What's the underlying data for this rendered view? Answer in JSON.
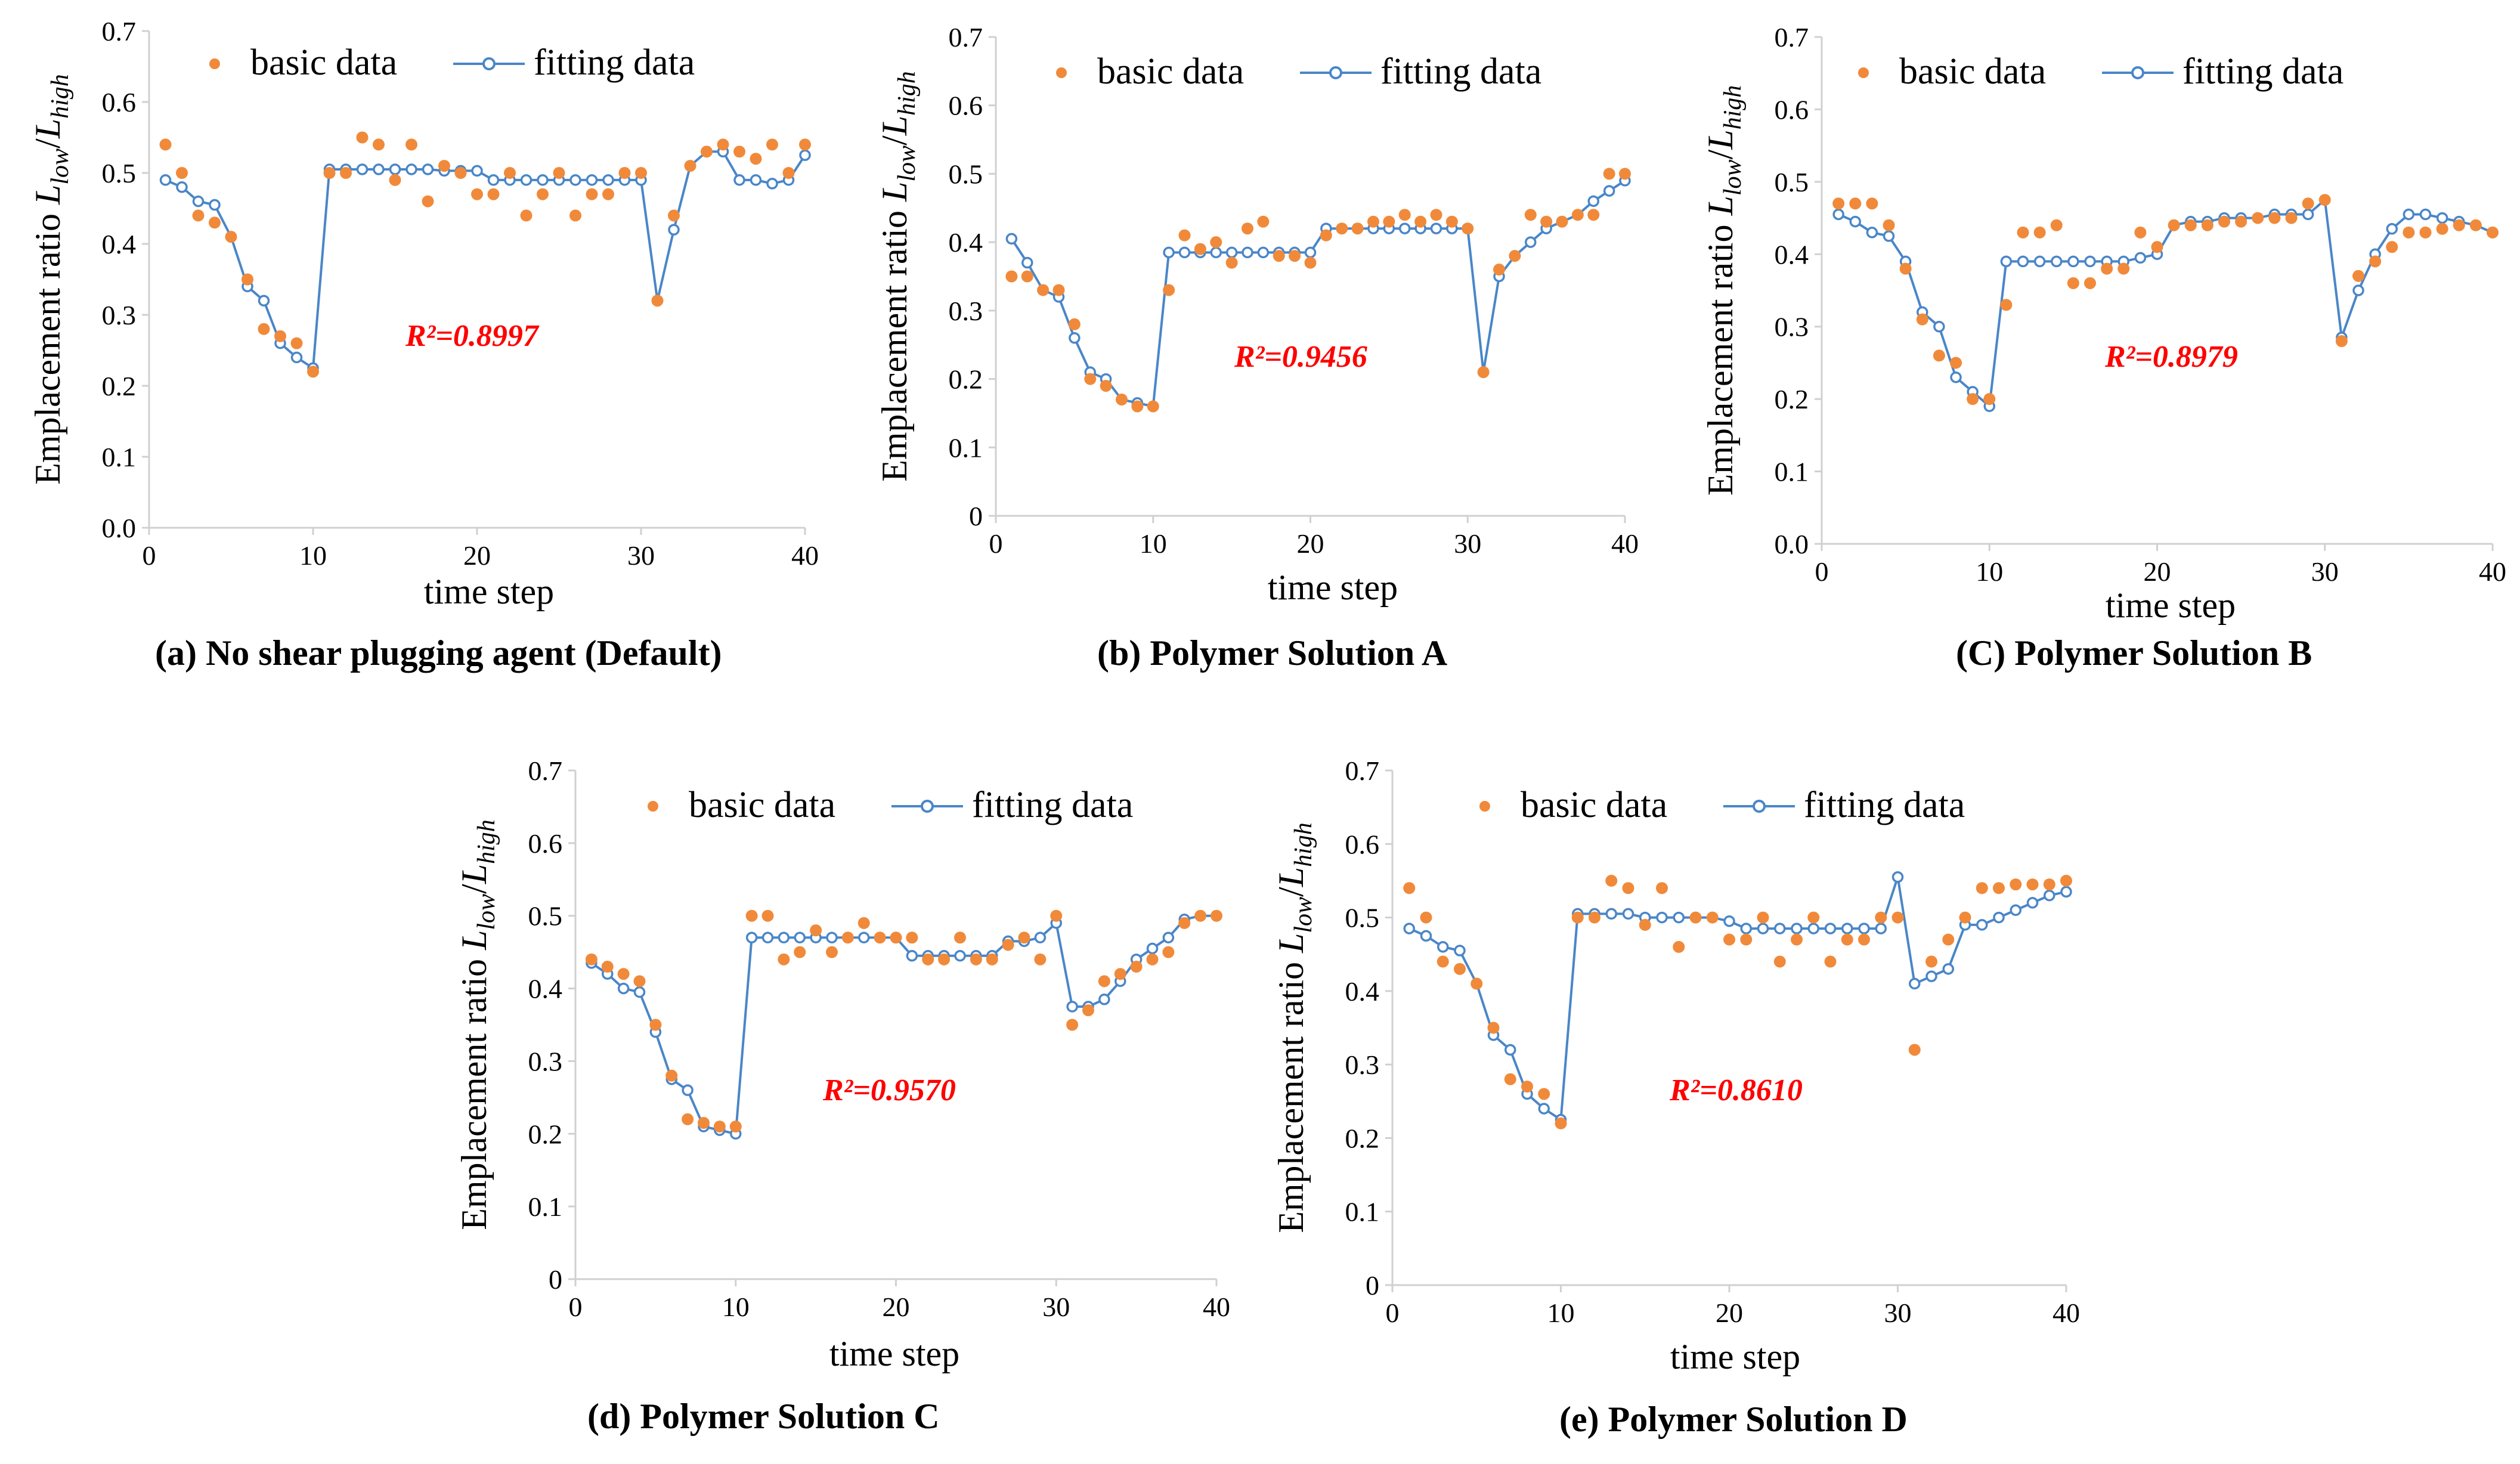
{
  "colors": {
    "basic": "#f08a3a",
    "fitting": "#4a86c8",
    "r2": "#ff0000",
    "axis": "#d0d0d0"
  },
  "chart_data": [
    {
      "type": "scatter+line",
      "caption": "(a) No shear plugging agent (Default)",
      "xlabel": "time step",
      "ylabel": "Emplacement ratio L_low/L_high",
      "ylabel_main": "Emplacement ratio ",
      "ylabel_sym1": "L",
      "ylabel_sub1": "low",
      "ylabel_slash": "/",
      "ylabel_sym2": "L",
      "ylabel_sub2": "high",
      "xlim": [
        0,
        40
      ],
      "ylim": [
        0,
        0.7
      ],
      "xticks": [
        "0",
        "10",
        "20",
        "30",
        "40"
      ],
      "yticks": [
        "0.0",
        "0.1",
        "0.2",
        "0.3",
        "0.4",
        "0.5",
        "0.6",
        "0.7"
      ],
      "legend": [
        "basic data",
        "fitting data"
      ],
      "r2_label": "R²=0.8997",
      "series": [
        {
          "name": "basic data",
          "x": [
            1,
            2,
            3,
            4,
            5,
            6,
            7,
            8,
            9,
            10,
            11,
            12,
            13,
            14,
            15,
            16,
            17,
            18,
            19,
            20,
            21,
            22,
            23,
            24,
            25,
            26,
            27,
            28,
            29,
            30,
            31,
            32,
            33,
            34,
            35,
            36,
            37,
            38,
            39,
            40
          ],
          "values": [
            0.54,
            0.5,
            0.44,
            0.43,
            0.41,
            0.35,
            0.28,
            0.27,
            0.26,
            0.22,
            0.5,
            0.5,
            0.55,
            0.54,
            0.49,
            0.54,
            0.46,
            0.51,
            0.5,
            0.47,
            0.47,
            0.5,
            0.44,
            0.47,
            0.5,
            0.44,
            0.47,
            0.47,
            0.5,
            0.5,
            0.32,
            0.44,
            0.51,
            0.53,
            0.54,
            0.53,
            0.52,
            0.54,
            0.5,
            0.54
          ]
        },
        {
          "name": "fitting data",
          "x": [
            1,
            2,
            3,
            4,
            5,
            6,
            7,
            8,
            9,
            10,
            11,
            12,
            13,
            14,
            15,
            16,
            17,
            18,
            19,
            20,
            21,
            22,
            23,
            24,
            25,
            26,
            27,
            28,
            29,
            30,
            31,
            32,
            33,
            34,
            35,
            36,
            37,
            38,
            39,
            40
          ],
          "values": [
            0.49,
            0.48,
            0.46,
            0.455,
            0.41,
            0.34,
            0.32,
            0.26,
            0.24,
            0.225,
            0.505,
            0.505,
            0.505,
            0.505,
            0.505,
            0.505,
            0.505,
            0.503,
            0.503,
            0.503,
            0.49,
            0.49,
            0.49,
            0.49,
            0.49,
            0.49,
            0.49,
            0.49,
            0.49,
            0.49,
            0.32,
            0.42,
            0.51,
            0.53,
            0.53,
            0.49,
            0.49,
            0.485,
            0.49,
            0.525
          ]
        }
      ]
    },
    {
      "type": "scatter+line",
      "caption": "(b) Polymer Solution A",
      "xlabel": "time step",
      "ylabel": "Emplacement ratio L_low/L_high",
      "ylabel_main": "Emplacement ratio ",
      "ylabel_sym1": "L",
      "ylabel_sub1": "low",
      "ylabel_slash": "/",
      "ylabel_sym2": "L",
      "ylabel_sub2": "high",
      "xlim": [
        0,
        40
      ],
      "ylim": [
        0,
        0.7
      ],
      "xticks": [
        "0",
        "10",
        "20",
        "30",
        "40"
      ],
      "yticks": [
        "0",
        "0.1",
        "0.2",
        "0.3",
        "0.4",
        "0.5",
        "0.6",
        "0.7"
      ],
      "legend": [
        "basic data",
        "fitting data"
      ],
      "r2_label": "R²=0.9456",
      "series": [
        {
          "name": "basic data",
          "x": [
            1,
            2,
            3,
            4,
            5,
            6,
            7,
            8,
            9,
            10,
            11,
            12,
            13,
            14,
            15,
            16,
            17,
            18,
            19,
            20,
            21,
            22,
            23,
            24,
            25,
            26,
            27,
            28,
            29,
            30,
            31,
            32,
            33,
            34,
            35,
            36,
            37,
            38,
            39,
            40
          ],
          "values": [
            0.35,
            0.35,
            0.33,
            0.33,
            0.28,
            0.2,
            0.19,
            0.17,
            0.16,
            0.16,
            0.33,
            0.41,
            0.39,
            0.4,
            0.37,
            0.42,
            0.43,
            0.38,
            0.38,
            0.37,
            0.41,
            0.42,
            0.42,
            0.43,
            0.43,
            0.44,
            0.43,
            0.44,
            0.43,
            0.42,
            0.21,
            0.36,
            0.38,
            0.44,
            0.43,
            0.43,
            0.44,
            0.44,
            0.5,
            0.5
          ]
        },
        {
          "name": "fitting data",
          "x": [
            1,
            2,
            3,
            4,
            5,
            6,
            7,
            8,
            9,
            10,
            11,
            12,
            13,
            14,
            15,
            16,
            17,
            18,
            19,
            20,
            21,
            22,
            23,
            24,
            25,
            26,
            27,
            28,
            29,
            30,
            31,
            32,
            33,
            34,
            35,
            36,
            37,
            38,
            39,
            40
          ],
          "values": [
            0.405,
            0.37,
            0.33,
            0.32,
            0.26,
            0.21,
            0.2,
            0.17,
            0.165,
            0.16,
            0.385,
            0.385,
            0.385,
            0.385,
            0.385,
            0.385,
            0.385,
            0.385,
            0.385,
            0.385,
            0.42,
            0.42,
            0.42,
            0.42,
            0.42,
            0.42,
            0.42,
            0.42,
            0.42,
            0.42,
            0.21,
            0.35,
            0.38,
            0.4,
            0.42,
            0.43,
            0.44,
            0.46,
            0.475,
            0.49
          ]
        }
      ]
    },
    {
      "type": "scatter+line",
      "caption": "(C) Polymer Solution B",
      "xlabel": "time step",
      "ylabel": "Emplacement ratio L_low/L_high",
      "ylabel_main": "Emplacement ratio ",
      "ylabel_sym1": "L",
      "ylabel_sub1": "low",
      "ylabel_slash": "/",
      "ylabel_sym2": "L",
      "ylabel_sub2": "high",
      "xlim": [
        0,
        40
      ],
      "ylim": [
        0,
        0.7
      ],
      "xticks": [
        "0",
        "10",
        "20",
        "30",
        "40"
      ],
      "yticks": [
        "0.0",
        "0.1",
        "0.2",
        "0.3",
        "0.4",
        "0.5",
        "0.6",
        "0.7"
      ],
      "legend": [
        "basic data",
        "fitting data"
      ],
      "r2_label": "R²=0.8979",
      "series": [
        {
          "name": "basic data",
          "x": [
            1,
            2,
            3,
            4,
            5,
            6,
            7,
            8,
            9,
            10,
            11,
            12,
            13,
            14,
            15,
            16,
            17,
            18,
            19,
            20,
            21,
            22,
            23,
            24,
            25,
            26,
            27,
            28,
            29,
            30,
            31,
            32,
            33,
            34,
            35,
            36,
            37,
            38,
            39,
            40
          ],
          "values": [
            0.47,
            0.47,
            0.47,
            0.44,
            0.38,
            0.31,
            0.26,
            0.25,
            0.2,
            0.2,
            0.33,
            0.43,
            0.43,
            0.44,
            0.36,
            0.36,
            0.38,
            0.38,
            0.43,
            0.41,
            0.44,
            0.44,
            0.44,
            0.445,
            0.445,
            0.45,
            0.45,
            0.45,
            0.47,
            0.475,
            0.28,
            0.37,
            0.39,
            0.41,
            0.43,
            0.43,
            0.435,
            0.44,
            0.44,
            0.43
          ]
        },
        {
          "name": "fitting data",
          "x": [
            1,
            2,
            3,
            4,
            5,
            6,
            7,
            8,
            9,
            10,
            11,
            12,
            13,
            14,
            15,
            16,
            17,
            18,
            19,
            20,
            21,
            22,
            23,
            24,
            25,
            26,
            27,
            28,
            29,
            30,
            31,
            32,
            33,
            34,
            35,
            36,
            37,
            38,
            39,
            40
          ],
          "values": [
            0.455,
            0.445,
            0.43,
            0.425,
            0.39,
            0.32,
            0.3,
            0.23,
            0.21,
            0.19,
            0.39,
            0.39,
            0.39,
            0.39,
            0.39,
            0.39,
            0.39,
            0.39,
            0.395,
            0.4,
            0.44,
            0.445,
            0.445,
            0.45,
            0.45,
            0.45,
            0.455,
            0.455,
            0.455,
            0.475,
            0.285,
            0.35,
            0.4,
            0.435,
            0.455,
            0.455,
            0.45,
            0.445,
            0.44,
            0.43
          ]
        }
      ]
    },
    {
      "type": "scatter+line",
      "caption": "(d) Polymer Solution C",
      "xlabel": "time step",
      "ylabel": "Emplacement ratio L_low/L_high",
      "ylabel_main": "Emplacement ratio ",
      "ylabel_sym1": "L",
      "ylabel_sub1": "low",
      "ylabel_slash": "/",
      "ylabel_sym2": "L",
      "ylabel_sub2": "high",
      "xlim": [
        0,
        40
      ],
      "ylim": [
        0,
        0.7
      ],
      "xticks": [
        "0",
        "10",
        "20",
        "30",
        "40"
      ],
      "yticks": [
        "0",
        "0.1",
        "0.2",
        "0.3",
        "0.4",
        "0.5",
        "0.6",
        "0.7"
      ],
      "legend": [
        "basic data",
        "fitting data"
      ],
      "r2_label": "R²=0.9570",
      "series": [
        {
          "name": "basic data",
          "x": [
            1,
            2,
            3,
            4,
            5,
            6,
            7,
            8,
            9,
            10,
            11,
            12,
            13,
            14,
            15,
            16,
            17,
            18,
            19,
            20,
            21,
            22,
            23,
            24,
            25,
            26,
            27,
            28,
            29,
            30,
            31,
            32,
            33,
            34,
            35,
            36,
            37,
            38,
            39,
            40
          ],
          "values": [
            0.44,
            0.43,
            0.42,
            0.41,
            0.35,
            0.28,
            0.22,
            0.215,
            0.21,
            0.21,
            0.5,
            0.5,
            0.44,
            0.45,
            0.48,
            0.45,
            0.47,
            0.49,
            0.47,
            0.47,
            0.47,
            0.44,
            0.44,
            0.47,
            0.44,
            0.44,
            0.46,
            0.47,
            0.44,
            0.5,
            0.35,
            0.37,
            0.41,
            0.42,
            0.43,
            0.44,
            0.45,
            0.49,
            0.5,
            0.5
          ]
        },
        {
          "name": "fitting data",
          "x": [
            1,
            2,
            3,
            4,
            5,
            6,
            7,
            8,
            9,
            10,
            11,
            12,
            13,
            14,
            15,
            16,
            17,
            18,
            19,
            20,
            21,
            22,
            23,
            24,
            25,
            26,
            27,
            28,
            29,
            30,
            31,
            32,
            33,
            34,
            35,
            36,
            37,
            38,
            39,
            40
          ],
          "values": [
            0.435,
            0.42,
            0.4,
            0.395,
            0.34,
            0.275,
            0.26,
            0.21,
            0.205,
            0.2,
            0.47,
            0.47,
            0.47,
            0.47,
            0.47,
            0.47,
            0.47,
            0.47,
            0.47,
            0.47,
            0.445,
            0.445,
            0.445,
            0.445,
            0.445,
            0.445,
            0.465,
            0.465,
            0.47,
            0.49,
            0.375,
            0.375,
            0.385,
            0.41,
            0.44,
            0.455,
            0.47,
            0.495,
            0.5,
            0.5
          ]
        }
      ]
    },
    {
      "type": "scatter+line",
      "caption": "(e) Polymer Solution D",
      "xlabel": "time step",
      "ylabel": "Emplacement ratio L_low/L_high",
      "ylabel_main": "Emplacement ratio ",
      "ylabel_sym1": "L",
      "ylabel_sub1": "low",
      "ylabel_slash": "/",
      "ylabel_sym2": "L",
      "ylabel_sub2": "high",
      "xlim": [
        0,
        40
      ],
      "ylim": [
        0,
        0.7
      ],
      "xticks": [
        "0",
        "10",
        "20",
        "30",
        "40"
      ],
      "yticks": [
        "0",
        "0.1",
        "0.2",
        "0.3",
        "0.4",
        "0.5",
        "0.6",
        "0.7"
      ],
      "legend": [
        "basic data",
        "fitting data"
      ],
      "r2_label": "R²=0.8610",
      "series": [
        {
          "name": "basic data",
          "x": [
            1,
            2,
            3,
            4,
            5,
            6,
            7,
            8,
            9,
            10,
            11,
            12,
            13,
            14,
            15,
            16,
            17,
            18,
            19,
            20,
            21,
            22,
            23,
            24,
            25,
            26,
            27,
            28,
            29,
            30,
            31,
            32,
            33,
            34,
            35,
            36,
            37,
            38,
            39,
            40
          ],
          "values": [
            0.54,
            0.5,
            0.44,
            0.43,
            0.41,
            0.35,
            0.28,
            0.27,
            0.26,
            0.22,
            0.5,
            0.5,
            0.55,
            0.54,
            0.49,
            0.54,
            0.46,
            0.5,
            0.5,
            0.47,
            0.47,
            0.5,
            0.44,
            0.47,
            0.5,
            0.44,
            0.47,
            0.47,
            0.5,
            0.5,
            0.32,
            0.44,
            0.47,
            0.5,
            0.54,
            0.54,
            0.545,
            0.545,
            0.545,
            0.55
          ]
        },
        {
          "name": "fitting data",
          "x": [
            1,
            2,
            3,
            4,
            5,
            6,
            7,
            8,
            9,
            10,
            11,
            12,
            13,
            14,
            15,
            16,
            17,
            18,
            19,
            20,
            21,
            22,
            23,
            24,
            25,
            26,
            27,
            28,
            29,
            30,
            31,
            32,
            33,
            34,
            35,
            36,
            37,
            38,
            39,
            40
          ],
          "values": [
            0.485,
            0.475,
            0.46,
            0.455,
            0.41,
            0.34,
            0.32,
            0.26,
            0.24,
            0.225,
            0.505,
            0.505,
            0.505,
            0.505,
            0.5,
            0.5,
            0.5,
            0.5,
            0.5,
            0.495,
            0.485,
            0.485,
            0.485,
            0.485,
            0.485,
            0.485,
            0.485,
            0.485,
            0.485,
            0.555,
            0.41,
            0.42,
            0.43,
            0.49,
            0.49,
            0.5,
            0.51,
            0.52,
            0.53,
            0.535
          ]
        }
      ]
    }
  ]
}
